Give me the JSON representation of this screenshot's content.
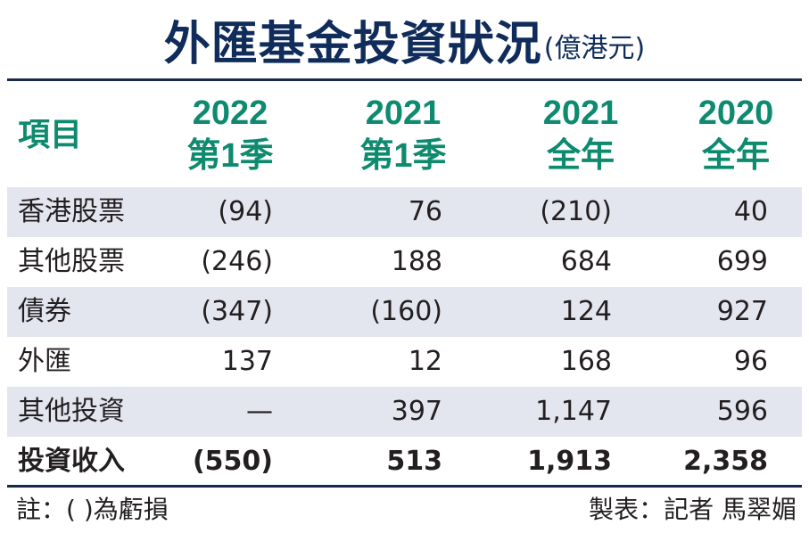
{
  "title": "外匯基金投資狀況",
  "unit": "(億港元)",
  "chart_data": {
    "type": "table",
    "columns": [
      {
        "line1": "項目",
        "line2": ""
      },
      {
        "line1": "2022",
        "line2": "第1季"
      },
      {
        "line1": "2021",
        "line2": "第1季"
      },
      {
        "line1": "2021",
        "line2": "全年"
      },
      {
        "line1": "2020",
        "line2": "全年"
      }
    ],
    "rows": [
      {
        "label": "香港股票",
        "values": [
          "(94)",
          "76",
          "(210)",
          "40"
        ]
      },
      {
        "label": "其他股票",
        "values": [
          "(246)",
          "188",
          "684",
          "699"
        ]
      },
      {
        "label": "債券",
        "values": [
          "(347)",
          "(160)",
          "124",
          "927"
        ]
      },
      {
        "label": "外匯",
        "values": [
          "137",
          "12",
          "168",
          "96"
        ]
      },
      {
        "label": "其他投資",
        "values": [
          "—",
          "397",
          "1,147",
          "596"
        ]
      },
      {
        "label": "投資收入",
        "values": [
          "(550)",
          "513",
          "1,913",
          "2,358"
        ]
      }
    ]
  },
  "footer": {
    "note": "註：( )為虧損",
    "credit": "製表：記者 馬翠媚"
  },
  "colors": {
    "title": "#0f2c5a",
    "header": "#0e8a6f",
    "row_shade": "#e3e6ef",
    "rule": "#1a2a4a"
  }
}
